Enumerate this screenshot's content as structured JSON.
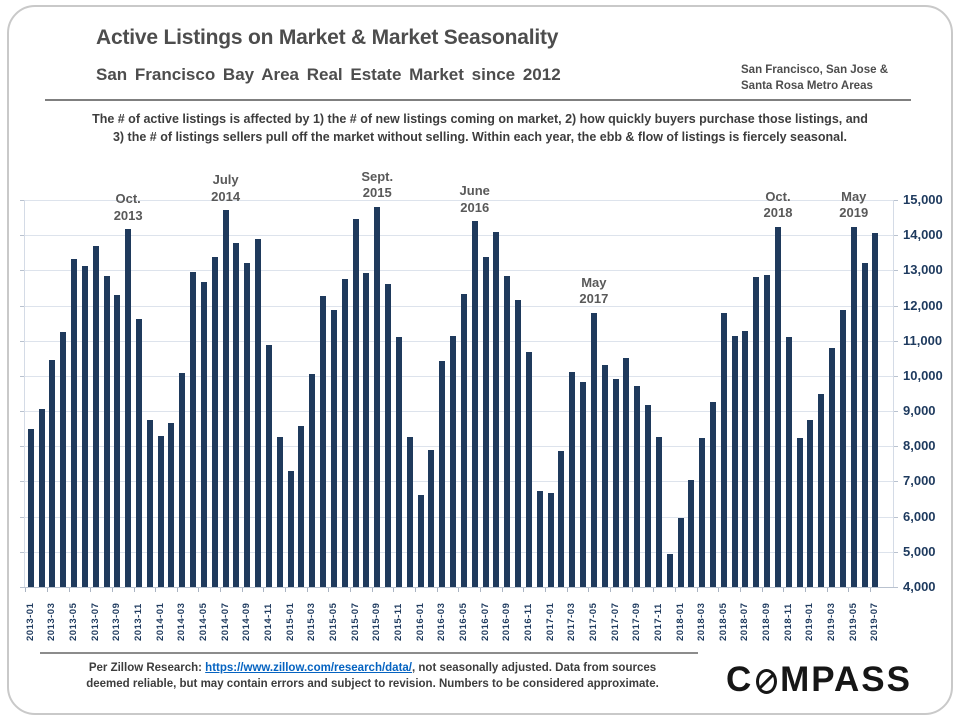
{
  "header": {
    "title": "Active Listings on Market & Market Seasonality",
    "subtitle": "San Francisco Bay Area Real Estate Market since 2012",
    "region_line1": "San Francisco, San Jose &",
    "region_line2": "Santa Rosa Metro Areas"
  },
  "intro": {
    "line1": "The # of active listings is affected by 1) the # of new listings coming on market, 2) how quickly buyers purchase those listings, and",
    "line2": "3) the # of listings sellers pull off the market without selling. Within each year, the ebb & flow of listings is fiercely seasonal."
  },
  "chart_data": {
    "type": "bar",
    "title": "Active Listings on Market & Market Seasonality",
    "xlabel": "",
    "ylabel": "",
    "ylim": [
      4000,
      15000
    ],
    "yticks": [
      4000,
      5000,
      6000,
      7000,
      8000,
      9000,
      10000,
      11000,
      12000,
      13000,
      14000,
      15000
    ],
    "x_label_step": 2,
    "grid": true,
    "legend": "none",
    "bar_color": "#1f3a5c",
    "axis_label_color": "#1e3a5e",
    "x": [
      "2013-01",
      "2013-02",
      "2013-03",
      "2013-04",
      "2013-05",
      "2013-06",
      "2013-07",
      "2013-08",
      "2013-09",
      "2013-10",
      "2013-11",
      "2013-12",
      "2014-01",
      "2014-02",
      "2014-03",
      "2014-04",
      "2014-05",
      "2014-06",
      "2014-07",
      "2014-08",
      "2014-09",
      "2014-10",
      "2014-11",
      "2014-12",
      "2015-01",
      "2015-02",
      "2015-03",
      "2015-04",
      "2015-05",
      "2015-06",
      "2015-07",
      "2015-08",
      "2015-09",
      "2015-10",
      "2015-11",
      "2015-12",
      "2016-01",
      "2016-02",
      "2016-03",
      "2016-04",
      "2016-05",
      "2016-06",
      "2016-07",
      "2016-08",
      "2016-09",
      "2016-10",
      "2016-11",
      "2016-12",
      "2017-01",
      "2017-02",
      "2017-03",
      "2017-04",
      "2017-05",
      "2017-06",
      "2017-07",
      "2017-08",
      "2017-09",
      "2017-10",
      "2017-11",
      "2017-12",
      "2018-01",
      "2018-02",
      "2018-03",
      "2018-04",
      "2018-05",
      "2018-06",
      "2018-07",
      "2018-08",
      "2018-09",
      "2018-10",
      "2018-11",
      "2018-12",
      "2019-01",
      "2019-02",
      "2019-03",
      "2019-04",
      "2019-05",
      "2019-06",
      "2019-07"
    ],
    "values": [
      8500,
      9050,
      10450,
      11240,
      13330,
      13110,
      13700,
      12830,
      12300,
      14170,
      11620,
      8740,
      8290,
      8660,
      10080,
      12950,
      12680,
      13380,
      14710,
      13780,
      13210,
      13900,
      10890,
      8270,
      7300,
      8590,
      10050,
      12270,
      11880,
      12760,
      14460,
      12930,
      14810,
      12600,
      11110,
      8260,
      6620,
      7900,
      10430,
      11140,
      12330,
      14400,
      13380,
      14080,
      12840,
      12170,
      10670,
      6730,
      6670,
      7860,
      10100,
      9840,
      11790,
      10310,
      9920,
      10500,
      9710,
      9160,
      8270,
      4930,
      5950,
      7050,
      8240,
      9270,
      11780,
      11140,
      11290,
      12810,
      12860,
      14240,
      11110,
      8240,
      8740,
      9500,
      10800,
      11860,
      14240,
      13210,
      14070
    ],
    "annotations": [
      {
        "line1": "Oct.",
        "line2": "2013",
        "month": "2013-10"
      },
      {
        "line1": "July",
        "line2": "2014",
        "month": "2014-07"
      },
      {
        "line1": "Sept.",
        "line2": "2015",
        "month": "2015-09"
      },
      {
        "line1": "June",
        "line2": "2016",
        "month": "2016-06"
      },
      {
        "line1": "May",
        "line2": "2017",
        "month": "2017-05"
      },
      {
        "line1": "Oct.",
        "line2": "2018",
        "month": "2018-10"
      },
      {
        "line1": "May",
        "line2": "2019",
        "month": "2019-05"
      }
    ]
  },
  "footer": {
    "prefix": "Per Zillow Research:  ",
    "link": "https://www.zillow.com/research/data/",
    "suffix": ",  not seasonally adjusted. Data from sources",
    "line2": "deemed reliable, but may contain errors and subject to revision. Numbers to be considered approximate.",
    "link_color": "#0563c1"
  },
  "logo": {
    "pre": "C",
    "post": "MPASS"
  }
}
